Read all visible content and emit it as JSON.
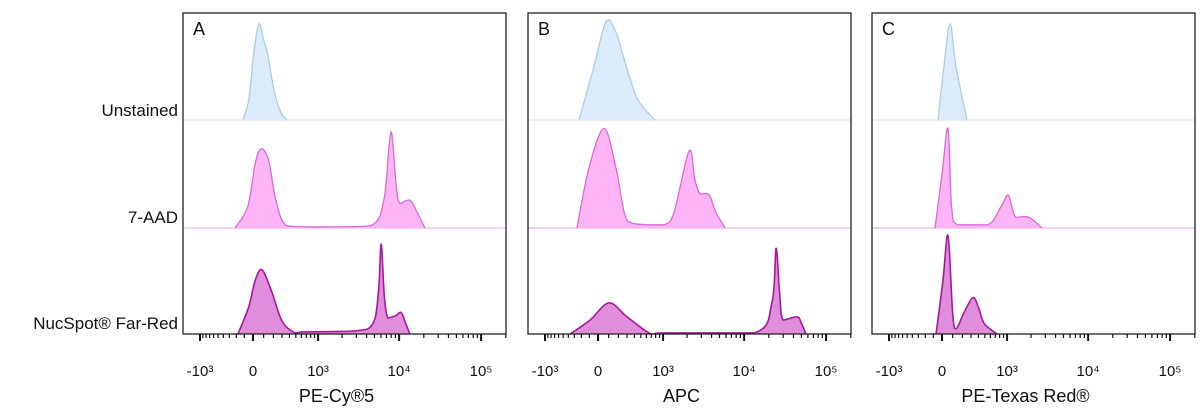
{
  "row_labels": [
    "Unstained",
    "7-AAD",
    "NucSpot® Far-Red"
  ],
  "colors": {
    "unstained_fill": "#dcebf9",
    "unstained_stroke": "#a9cde9",
    "aad_fill": "#ffb4f6",
    "aad_stroke": "#d86ad6",
    "nucspot_fill": "#e08ddb",
    "nucspot_stroke": "#a8189a"
  },
  "chart_data": [
    {
      "type": "area",
      "panel": "A",
      "xlabel": "PE-Cy®5",
      "x_scale": "biexponential",
      "xticks": [
        -1000,
        0,
        1000,
        10000,
        100000
      ],
      "xtick_labels": [
        "-10³",
        "0",
        "10³",
        "10⁴",
        "10⁵"
      ],
      "series": [
        {
          "name": "Unstained",
          "points": [
            [
              -116,
              0
            ],
            [
              -46,
              20
            ],
            [
              10,
              65
            ],
            [
              56,
              90
            ],
            [
              100,
              75
            ],
            [
              143,
              60
            ],
            [
              206,
              28
            ],
            [
              280,
              8
            ],
            [
              366,
              0
            ]
          ]
        },
        {
          "name": "7-AAD",
          "points": [
            [
              -218,
              0
            ],
            [
              -60,
              20
            ],
            [
              20,
              60
            ],
            [
              75,
              74
            ],
            [
              150,
              63
            ],
            [
              230,
              25
            ],
            [
              366,
              2
            ],
            [
              1000,
              1
            ],
            [
              4420,
              2
            ],
            [
              6500,
              26
            ],
            [
              7500,
              75
            ],
            [
              8150,
              88
            ],
            [
              9200,
              40
            ],
            [
              10230,
              23
            ],
            [
              13500,
              26
            ],
            [
              16500,
              15
            ],
            [
              20600,
              0
            ]
          ]
        },
        {
          "name": "NucSpot® Far-Red",
          "points": [
            [
              -179,
              0
            ],
            [
              -50,
              25
            ],
            [
              20,
              50
            ],
            [
              84,
              60
            ],
            [
              180,
              40
            ],
            [
              300,
              12
            ],
            [
              488,
              1
            ],
            [
              700,
              2
            ],
            [
              3000,
              3
            ],
            [
              4800,
              10
            ],
            [
              5600,
              40
            ],
            [
              6040,
              84
            ],
            [
              6600,
              35
            ],
            [
              7300,
              15
            ],
            [
              9000,
              17
            ],
            [
              10600,
              20
            ],
            [
              12000,
              10
            ],
            [
              13500,
              0
            ]
          ]
        }
      ]
    },
    {
      "type": "area",
      "panel": "B",
      "xlabel": "APC",
      "x_scale": "biexponential",
      "xticks": [
        -1000,
        0,
        1000,
        10000,
        100000
      ],
      "xtick_labels": [
        "-10³",
        "0",
        "10³",
        "10⁴",
        "10⁵"
      ],
      "series": [
        {
          "name": "Unstained",
          "points": [
            [
              -231,
              0
            ],
            [
              -46,
              50
            ],
            [
              75,
              92
            ],
            [
              174,
              82
            ],
            [
              275,
              54
            ],
            [
              452,
              19
            ],
            [
              785,
              0
            ]
          ]
        },
        {
          "name": "7-AAD",
          "points": [
            [
              -261,
              0
            ],
            [
              -105,
              56
            ],
            [
              56,
              93
            ],
            [
              174,
              56
            ],
            [
              300,
              7
            ],
            [
              600,
              3
            ],
            [
              1020,
              3
            ],
            [
              1370,
              14
            ],
            [
              2120,
              72
            ],
            [
              2500,
              45
            ],
            [
              2900,
              32
            ],
            [
              3730,
              31
            ],
            [
              4500,
              15
            ],
            [
              5840,
              0
            ]
          ]
        },
        {
          "name": "NucSpot® Far-Red",
          "points": [
            [
              -370,
              0
            ],
            [
              -92,
              13
            ],
            [
              104,
              29
            ],
            [
              300,
              16
            ],
            [
              695,
              0
            ],
            [
              1090,
              1
            ],
            [
              13200,
              1
            ],
            [
              21900,
              30
            ],
            [
              24500,
              80
            ],
            [
              27000,
              40
            ],
            [
              29900,
              13
            ],
            [
              44200,
              16
            ],
            [
              50000,
              10
            ],
            [
              56800,
              0
            ]
          ]
        }
      ]
    },
    {
      "type": "area",
      "panel": "C",
      "xlabel": "PE-Texas Red®",
      "x_scale": "biexponential",
      "xticks": [
        -1000,
        0,
        1000,
        10000,
        100000
      ],
      "xtick_labels": [
        "-10³",
        "0",
        "10³",
        "10⁴",
        "10⁵"
      ],
      "series": [
        {
          "name": "Unstained",
          "points": [
            [
              -46,
              0
            ],
            [
              18,
              50
            ],
            [
              75,
              90
            ],
            [
              133,
              50
            ],
            [
              251,
              0
            ]
          ]
        },
        {
          "name": "7-AAD",
          "points": [
            [
              -80,
              0
            ],
            [
              0,
              50
            ],
            [
              56,
              93
            ],
            [
              90,
              20
            ],
            [
              153,
              3
            ],
            [
              552,
              3
            ],
            [
              835,
              20
            ],
            [
              1020,
              31
            ],
            [
              1150,
              20
            ],
            [
              1300,
              10
            ],
            [
              1880,
              10
            ],
            [
              2740,
              0
            ]
          ]
        },
        {
          "name": "NucSpot® Far-Red",
          "points": [
            [
              -68,
              0
            ],
            [
              9,
              50
            ],
            [
              56,
              92
            ],
            [
              100,
              20
            ],
            [
              133,
              5
            ],
            [
              217,
              20
            ],
            [
              324,
              34
            ],
            [
              400,
              25
            ],
            [
              488,
              10
            ],
            [
              735,
              0
            ]
          ]
        }
      ]
    }
  ]
}
